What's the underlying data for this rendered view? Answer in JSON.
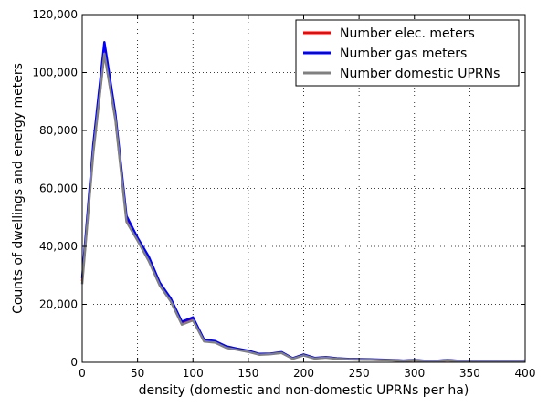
{
  "chart_data": {
    "type": "line",
    "title": "",
    "xlabel": "density (domestic and non-domestic UPRNs per ha)",
    "ylabel": "Counts of dwellings and energy meters",
    "xlim": [
      0,
      400
    ],
    "ylim": [
      0,
      120000
    ],
    "xticks": [
      0,
      50,
      100,
      150,
      200,
      250,
      300,
      350,
      400
    ],
    "xtick_labels": [
      "0",
      "50",
      "100",
      "150",
      "200",
      "250",
      "300",
      "350",
      "400"
    ],
    "yticks": [
      0,
      20000,
      40000,
      60000,
      80000,
      100000,
      120000
    ],
    "ytick_labels": [
      "0",
      "20,000",
      "40,000",
      "60,000",
      "80,000",
      "100,000",
      "120,000"
    ],
    "grid": true,
    "legend_position": "top-right",
    "x": [
      0,
      10,
      20,
      30,
      40,
      50,
      60,
      70,
      80,
      90,
      100,
      110,
      120,
      130,
      140,
      150,
      160,
      170,
      180,
      190,
      200,
      210,
      220,
      230,
      240,
      250,
      260,
      270,
      280,
      290,
      300,
      310,
      320,
      330,
      340,
      350,
      360,
      370,
      380,
      390,
      400
    ],
    "series": [
      {
        "name": "Number elec. meters",
        "color": "#ff0000",
        "values": [
          28000,
          73000,
          107000,
          84000,
          49500,
          42500,
          35500,
          27000,
          21500,
          13500,
          15000,
          7500,
          7000,
          5200,
          4500,
          3800,
          2700,
          2900,
          3300,
          1300,
          2500,
          1400,
          1700,
          1300,
          1100,
          1000,
          900,
          800,
          700,
          500,
          700,
          400,
          400,
          700,
          400,
          400,
          400,
          400,
          300,
          300,
          500
        ]
      },
      {
        "name": "Number gas meters",
        "color": "#0000ff",
        "values": [
          29000,
          75000,
          110500,
          85500,
          50500,
          43000,
          36500,
          27500,
          22000,
          14000,
          15500,
          7800,
          7300,
          5500,
          4700,
          4000,
          2900,
          3000,
          3500,
          1400,
          2700,
          1500,
          1800,
          1400,
          1200,
          1100,
          1000,
          900,
          800,
          600,
          800,
          500,
          500,
          800,
          500,
          500,
          500,
          500,
          400,
          400,
          600
        ]
      },
      {
        "name": "Number domestic UPRNs",
        "color": "#808080",
        "values": [
          27000,
          72000,
          106500,
          83500,
          48500,
          42000,
          35000,
          26500,
          21000,
          13000,
          14500,
          7200,
          6800,
          5000,
          4300,
          3600,
          2600,
          2800,
          3200,
          1200,
          2400,
          1300,
          1600,
          1200,
          1000,
          900,
          850,
          750,
          650,
          450,
          650,
          350,
          350,
          650,
          350,
          350,
          350,
          350,
          250,
          250,
          450
        ]
      }
    ]
  }
}
